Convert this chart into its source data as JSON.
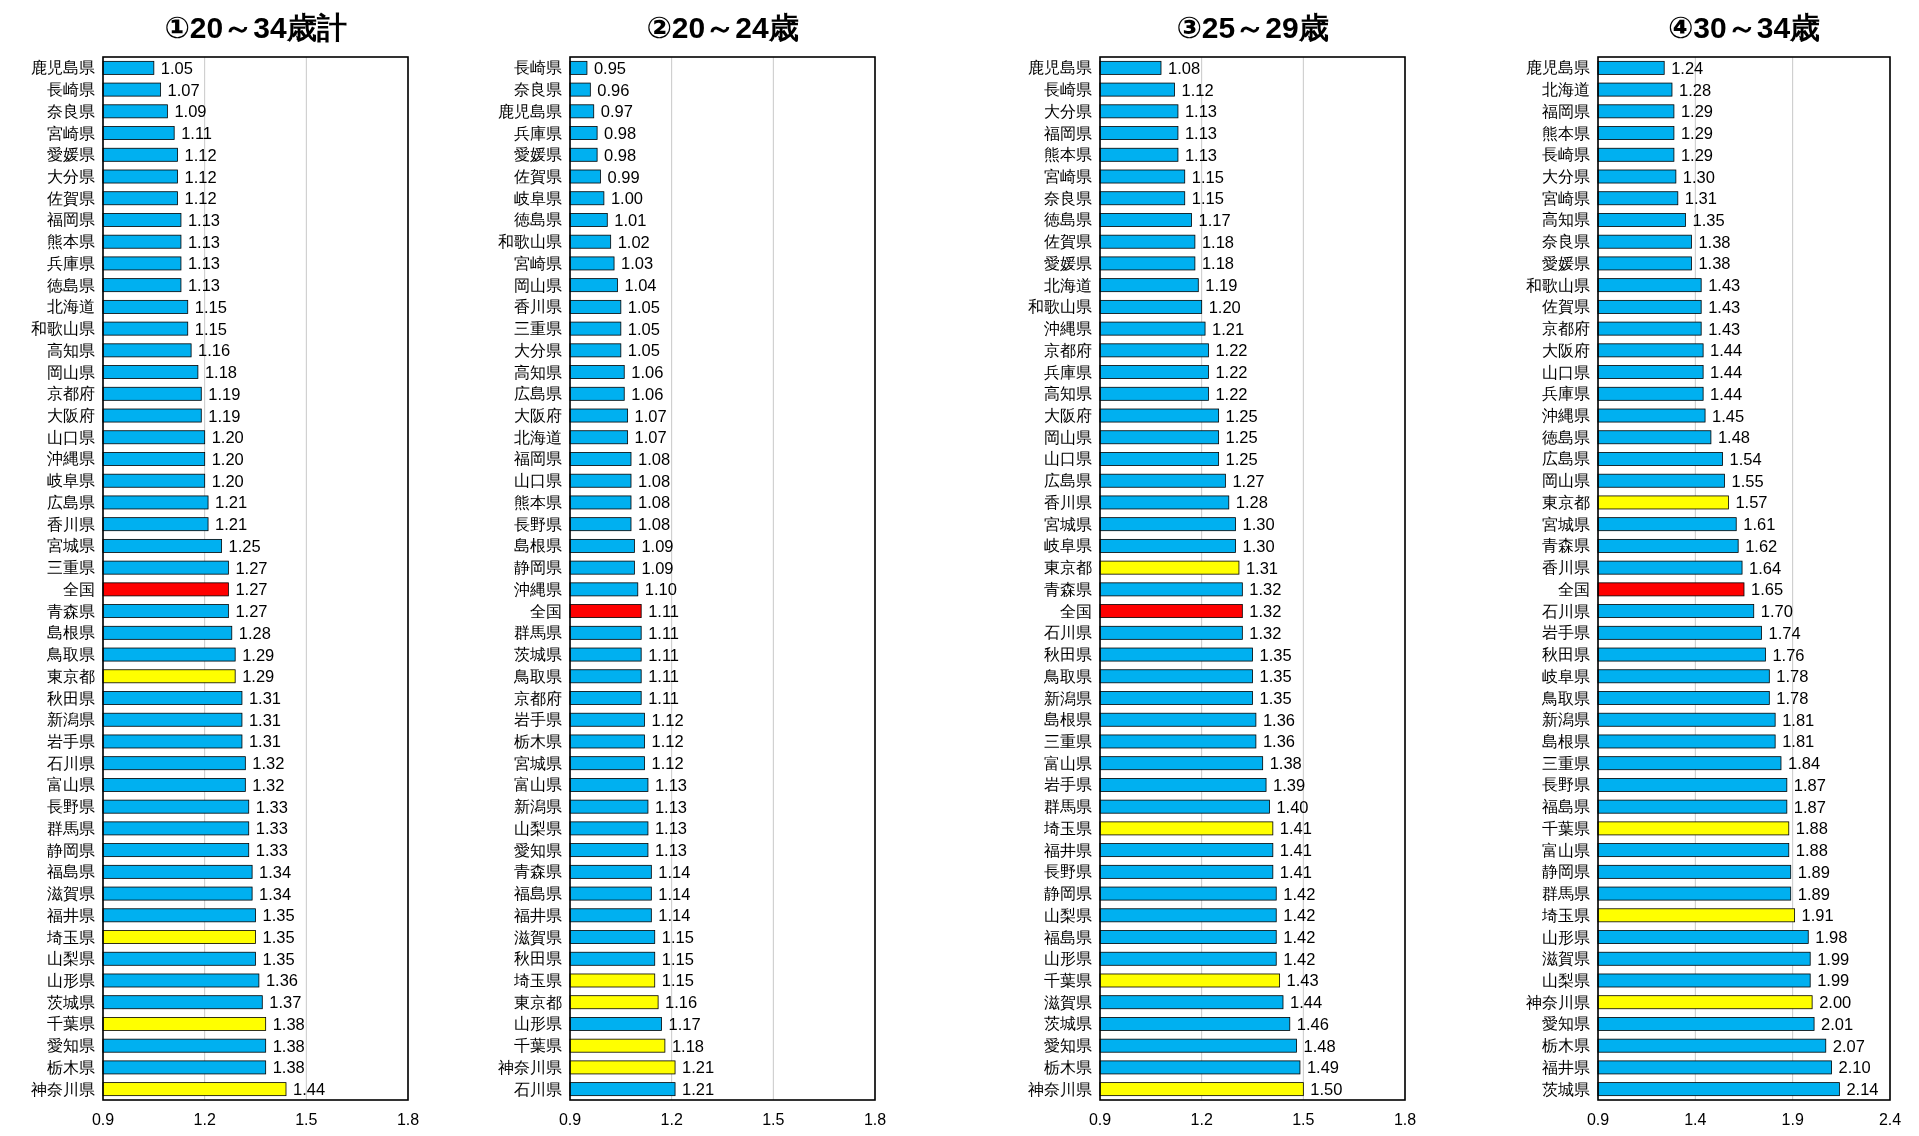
{
  "chart_data": [
    {
      "type": "bar",
      "orientation": "horizontal",
      "title": "①20～34歳計",
      "grid": "x",
      "xlim": [
        0.9,
        1.8
      ],
      "xticks": [
        0.9,
        1.2,
        1.5,
        1.8
      ],
      "categories": [
        "鹿児島県",
        "長崎県",
        "奈良県",
        "宮崎県",
        "愛媛県",
        "大分県",
        "佐賀県",
        "福岡県",
        "熊本県",
        "兵庫県",
        "徳島県",
        "北海道",
        "和歌山県",
        "高知県",
        "岡山県",
        "京都府",
        "大阪府",
        "山口県",
        "沖縄県",
        "岐阜県",
        "広島県",
        "香川県",
        "宮城県",
        "三重県",
        "全国",
        "青森県",
        "島根県",
        "鳥取県",
        "東京都",
        "秋田県",
        "新潟県",
        "岩手県",
        "石川県",
        "富山県",
        "長野県",
        "群馬県",
        "静岡県",
        "福島県",
        "滋賀県",
        "福井県",
        "埼玉県",
        "山梨県",
        "山形県",
        "茨城県",
        "千葉県",
        "愛知県",
        "栃木県",
        "神奈川県"
      ],
      "values": [
        1.05,
        1.07,
        1.09,
        1.11,
        1.12,
        1.12,
        1.12,
        1.13,
        1.13,
        1.13,
        1.13,
        1.15,
        1.15,
        1.16,
        1.18,
        1.19,
        1.19,
        1.2,
        1.2,
        1.2,
        1.21,
        1.21,
        1.25,
        1.27,
        1.27,
        1.27,
        1.28,
        1.29,
        1.29,
        1.31,
        1.31,
        1.31,
        1.32,
        1.32,
        1.33,
        1.33,
        1.33,
        1.34,
        1.34,
        1.35,
        1.35,
        1.35,
        1.36,
        1.37,
        1.38,
        1.38,
        1.38,
        1.44
      ],
      "value_labels": [
        "1.05",
        "1.07",
        "1.09",
        "1.11",
        "1.12",
        "1.12",
        "1.12",
        "1.13",
        "1.13",
        "1.13",
        "1.13",
        "1.15",
        "1.15",
        "1.16",
        "1.18",
        "1.19",
        "1.19",
        "1.20",
        "1.20",
        "1.20",
        "1.21",
        "1.21",
        "1.25",
        "1.27",
        "1.27",
        "1.27",
        "1.28",
        "1.29",
        "1.29",
        "1.31",
        "1.31",
        "1.31",
        "1.32",
        "1.32",
        "1.33",
        "1.33",
        "1.33",
        "1.34",
        "1.34",
        "1.35",
        "1.35",
        "1.35",
        "1.36",
        "1.37",
        "1.38",
        "1.38",
        "1.38",
        "1.44"
      ],
      "colors": [
        "#00b0f0",
        "#00b0f0",
        "#00b0f0",
        "#00b0f0",
        "#00b0f0",
        "#00b0f0",
        "#00b0f0",
        "#00b0f0",
        "#00b0f0",
        "#00b0f0",
        "#00b0f0",
        "#00b0f0",
        "#00b0f0",
        "#00b0f0",
        "#00b0f0",
        "#00b0f0",
        "#00b0f0",
        "#00b0f0",
        "#00b0f0",
        "#00b0f0",
        "#00b0f0",
        "#00b0f0",
        "#00b0f0",
        "#00b0f0",
        "#ff0000",
        "#00b0f0",
        "#00b0f0",
        "#00b0f0",
        "#ffff00",
        "#00b0f0",
        "#00b0f0",
        "#00b0f0",
        "#00b0f0",
        "#00b0f0",
        "#00b0f0",
        "#00b0f0",
        "#00b0f0",
        "#00b0f0",
        "#00b0f0",
        "#00b0f0",
        "#ffff00",
        "#00b0f0",
        "#00b0f0",
        "#00b0f0",
        "#ffff00",
        "#00b0f0",
        "#00b0f0",
        "#ffff00"
      ]
    },
    {
      "type": "bar",
      "orientation": "horizontal",
      "title": "②20～24歳",
      "grid": "x",
      "xlim": [
        0.9,
        1.8
      ],
      "xticks": [
        0.9,
        1.2,
        1.5,
        1.8
      ],
      "categories": [
        "長崎県",
        "奈良県",
        "鹿児島県",
        "兵庫県",
        "愛媛県",
        "佐賀県",
        "岐阜県",
        "徳島県",
        "和歌山県",
        "宮崎県",
        "岡山県",
        "香川県",
        "三重県",
        "大分県",
        "高知県",
        "広島県",
        "大阪府",
        "北海道",
        "福岡県",
        "山口県",
        "熊本県",
        "長野県",
        "島根県",
        "静岡県",
        "沖縄県",
        "全国",
        "群馬県",
        "茨城県",
        "鳥取県",
        "京都府",
        "岩手県",
        "栃木県",
        "宮城県",
        "富山県",
        "新潟県",
        "山梨県",
        "愛知県",
        "青森県",
        "福島県",
        "福井県",
        "滋賀県",
        "秋田県",
        "埼玉県",
        "東京都",
        "山形県",
        "千葉県",
        "神奈川県",
        "石川県"
      ],
      "values": [
        0.95,
        0.96,
        0.97,
        0.98,
        0.98,
        0.99,
        1.0,
        1.01,
        1.02,
        1.03,
        1.04,
        1.05,
        1.05,
        1.05,
        1.06,
        1.06,
        1.07,
        1.07,
        1.08,
        1.08,
        1.08,
        1.08,
        1.09,
        1.09,
        1.1,
        1.11,
        1.11,
        1.11,
        1.11,
        1.11,
        1.12,
        1.12,
        1.12,
        1.13,
        1.13,
        1.13,
        1.13,
        1.14,
        1.14,
        1.14,
        1.15,
        1.15,
        1.15,
        1.16,
        1.17,
        1.18,
        1.21,
        1.21
      ],
      "value_labels": [
        "0.95",
        "0.96",
        "0.97",
        "0.98",
        "0.98",
        "0.99",
        "1.00",
        "1.01",
        "1.02",
        "1.03",
        "1.04",
        "1.05",
        "1.05",
        "1.05",
        "1.06",
        "1.06",
        "1.07",
        "1.07",
        "1.08",
        "1.08",
        "1.08",
        "1.08",
        "1.09",
        "1.09",
        "1.10",
        "1.11",
        "1.11",
        "1.11",
        "1.11",
        "1.11",
        "1.12",
        "1.12",
        "1.12",
        "1.13",
        "1.13",
        "1.13",
        "1.13",
        "1.14",
        "1.14",
        "1.14",
        "1.15",
        "1.15",
        "1.15",
        "1.16",
        "1.17",
        "1.18",
        "1.21",
        "1.21"
      ],
      "colors": [
        "#00b0f0",
        "#00b0f0",
        "#00b0f0",
        "#00b0f0",
        "#00b0f0",
        "#00b0f0",
        "#00b0f0",
        "#00b0f0",
        "#00b0f0",
        "#00b0f0",
        "#00b0f0",
        "#00b0f0",
        "#00b0f0",
        "#00b0f0",
        "#00b0f0",
        "#00b0f0",
        "#00b0f0",
        "#00b0f0",
        "#00b0f0",
        "#00b0f0",
        "#00b0f0",
        "#00b0f0",
        "#00b0f0",
        "#00b0f0",
        "#00b0f0",
        "#ff0000",
        "#00b0f0",
        "#00b0f0",
        "#00b0f0",
        "#00b0f0",
        "#00b0f0",
        "#00b0f0",
        "#00b0f0",
        "#00b0f0",
        "#00b0f0",
        "#00b0f0",
        "#00b0f0",
        "#00b0f0",
        "#00b0f0",
        "#00b0f0",
        "#00b0f0",
        "#00b0f0",
        "#ffff00",
        "#ffff00",
        "#00b0f0",
        "#ffff00",
        "#ffff00",
        "#00b0f0"
      ]
    },
    {
      "type": "bar",
      "orientation": "horizontal",
      "title": "③25～29歳",
      "grid": "x",
      "xlim": [
        0.9,
        1.8
      ],
      "xticks": [
        0.9,
        1.2,
        1.5,
        1.8
      ],
      "categories": [
        "鹿児島県",
        "長崎県",
        "大分県",
        "福岡県",
        "熊本県",
        "宮崎県",
        "奈良県",
        "徳島県",
        "佐賀県",
        "愛媛県",
        "北海道",
        "和歌山県",
        "沖縄県",
        "京都府",
        "兵庫県",
        "高知県",
        "大阪府",
        "岡山県",
        "山口県",
        "広島県",
        "香川県",
        "宮城県",
        "岐阜県",
        "東京都",
        "青森県",
        "全国",
        "石川県",
        "秋田県",
        "鳥取県",
        "新潟県",
        "島根県",
        "三重県",
        "富山県",
        "岩手県",
        "群馬県",
        "埼玉県",
        "福井県",
        "長野県",
        "静岡県",
        "山梨県",
        "福島県",
        "山形県",
        "千葉県",
        "滋賀県",
        "茨城県",
        "愛知県",
        "栃木県",
        "神奈川県"
      ],
      "values": [
        1.08,
        1.12,
        1.13,
        1.13,
        1.13,
        1.15,
        1.15,
        1.17,
        1.18,
        1.18,
        1.19,
        1.2,
        1.21,
        1.22,
        1.22,
        1.22,
        1.25,
        1.25,
        1.25,
        1.27,
        1.28,
        1.3,
        1.3,
        1.31,
        1.32,
        1.32,
        1.32,
        1.35,
        1.35,
        1.35,
        1.36,
        1.36,
        1.38,
        1.39,
        1.4,
        1.41,
        1.41,
        1.41,
        1.42,
        1.42,
        1.42,
        1.42,
        1.43,
        1.44,
        1.46,
        1.48,
        1.49,
        1.5
      ],
      "value_labels": [
        "1.08",
        "1.12",
        "1.13",
        "1.13",
        "1.13",
        "1.15",
        "1.15",
        "1.17",
        "1.18",
        "1.18",
        "1.19",
        "1.20",
        "1.21",
        "1.22",
        "1.22",
        "1.22",
        "1.25",
        "1.25",
        "1.25",
        "1.27",
        "1.28",
        "1.30",
        "1.30",
        "1.31",
        "1.32",
        "1.32",
        "1.32",
        "1.35",
        "1.35",
        "1.35",
        "1.36",
        "1.36",
        "1.38",
        "1.39",
        "1.40",
        "1.41",
        "1.41",
        "1.41",
        "1.42",
        "1.42",
        "1.42",
        "1.42",
        "1.43",
        "1.44",
        "1.46",
        "1.48",
        "1.49",
        "1.50"
      ],
      "colors": [
        "#00b0f0",
        "#00b0f0",
        "#00b0f0",
        "#00b0f0",
        "#00b0f0",
        "#00b0f0",
        "#00b0f0",
        "#00b0f0",
        "#00b0f0",
        "#00b0f0",
        "#00b0f0",
        "#00b0f0",
        "#00b0f0",
        "#00b0f0",
        "#00b0f0",
        "#00b0f0",
        "#00b0f0",
        "#00b0f0",
        "#00b0f0",
        "#00b0f0",
        "#00b0f0",
        "#00b0f0",
        "#00b0f0",
        "#ffff00",
        "#00b0f0",
        "#ff0000",
        "#00b0f0",
        "#00b0f0",
        "#00b0f0",
        "#00b0f0",
        "#00b0f0",
        "#00b0f0",
        "#00b0f0",
        "#00b0f0",
        "#00b0f0",
        "#ffff00",
        "#00b0f0",
        "#00b0f0",
        "#00b0f0",
        "#00b0f0",
        "#00b0f0",
        "#00b0f0",
        "#ffff00",
        "#00b0f0",
        "#00b0f0",
        "#00b0f0",
        "#00b0f0",
        "#ffff00"
      ]
    },
    {
      "type": "bar",
      "orientation": "horizontal",
      "title": "④30～34歳",
      "grid": "x",
      "xlim": [
        0.9,
        2.4
      ],
      "xticks": [
        0.9,
        1.4,
        1.9,
        2.4
      ],
      "categories": [
        "鹿児島県",
        "北海道",
        "福岡県",
        "熊本県",
        "長崎県",
        "大分県",
        "宮崎県",
        "高知県",
        "奈良県",
        "愛媛県",
        "和歌山県",
        "佐賀県",
        "京都府",
        "大阪府",
        "山口県",
        "兵庫県",
        "沖縄県",
        "徳島県",
        "広島県",
        "岡山県",
        "東京都",
        "宮城県",
        "青森県",
        "香川県",
        "全国",
        "石川県",
        "岩手県",
        "秋田県",
        "岐阜県",
        "鳥取県",
        "新潟県",
        "島根県",
        "三重県",
        "長野県",
        "福島県",
        "千葉県",
        "富山県",
        "静岡県",
        "群馬県",
        "埼玉県",
        "山形県",
        "滋賀県",
        "山梨県",
        "神奈川県",
        "愛知県",
        "栃木県",
        "福井県",
        "茨城県"
      ],
      "values": [
        1.24,
        1.28,
        1.29,
        1.29,
        1.29,
        1.3,
        1.31,
        1.35,
        1.38,
        1.38,
        1.43,
        1.43,
        1.43,
        1.44,
        1.44,
        1.44,
        1.45,
        1.48,
        1.54,
        1.55,
        1.57,
        1.61,
        1.62,
        1.64,
        1.65,
        1.7,
        1.74,
        1.76,
        1.78,
        1.78,
        1.81,
        1.81,
        1.84,
        1.87,
        1.87,
        1.88,
        1.88,
        1.89,
        1.89,
        1.91,
        1.98,
        1.99,
        1.99,
        2.0,
        2.01,
        2.07,
        2.1,
        2.14
      ],
      "value_labels": [
        "1.24",
        "1.28",
        "1.29",
        "1.29",
        "1.29",
        "1.30",
        "1.31",
        "1.35",
        "1.38",
        "1.38",
        "1.43",
        "1.43",
        "1.43",
        "1.44",
        "1.44",
        "1.44",
        "1.45",
        "1.48",
        "1.54",
        "1.55",
        "1.57",
        "1.61",
        "1.62",
        "1.64",
        "1.65",
        "1.70",
        "1.74",
        "1.76",
        "1.78",
        "1.78",
        "1.81",
        "1.81",
        "1.84",
        "1.87",
        "1.87",
        "1.88",
        "1.88",
        "1.89",
        "1.89",
        "1.91",
        "1.98",
        "1.99",
        "1.99",
        "2.00",
        "2.01",
        "2.07",
        "2.10",
        "2.14"
      ],
      "colors": [
        "#00b0f0",
        "#00b0f0",
        "#00b0f0",
        "#00b0f0",
        "#00b0f0",
        "#00b0f0",
        "#00b0f0",
        "#00b0f0",
        "#00b0f0",
        "#00b0f0",
        "#00b0f0",
        "#00b0f0",
        "#00b0f0",
        "#00b0f0",
        "#00b0f0",
        "#00b0f0",
        "#00b0f0",
        "#00b0f0",
        "#00b0f0",
        "#00b0f0",
        "#ffff00",
        "#00b0f0",
        "#00b0f0",
        "#00b0f0",
        "#ff0000",
        "#00b0f0",
        "#00b0f0",
        "#00b0f0",
        "#00b0f0",
        "#00b0f0",
        "#00b0f0",
        "#00b0f0",
        "#00b0f0",
        "#00b0f0",
        "#00b0f0",
        "#ffff00",
        "#00b0f0",
        "#00b0f0",
        "#00b0f0",
        "#ffff00",
        "#00b0f0",
        "#00b0f0",
        "#00b0f0",
        "#ffff00",
        "#00b0f0",
        "#00b0f0",
        "#00b0f0",
        "#00b0f0"
      ]
    }
  ]
}
